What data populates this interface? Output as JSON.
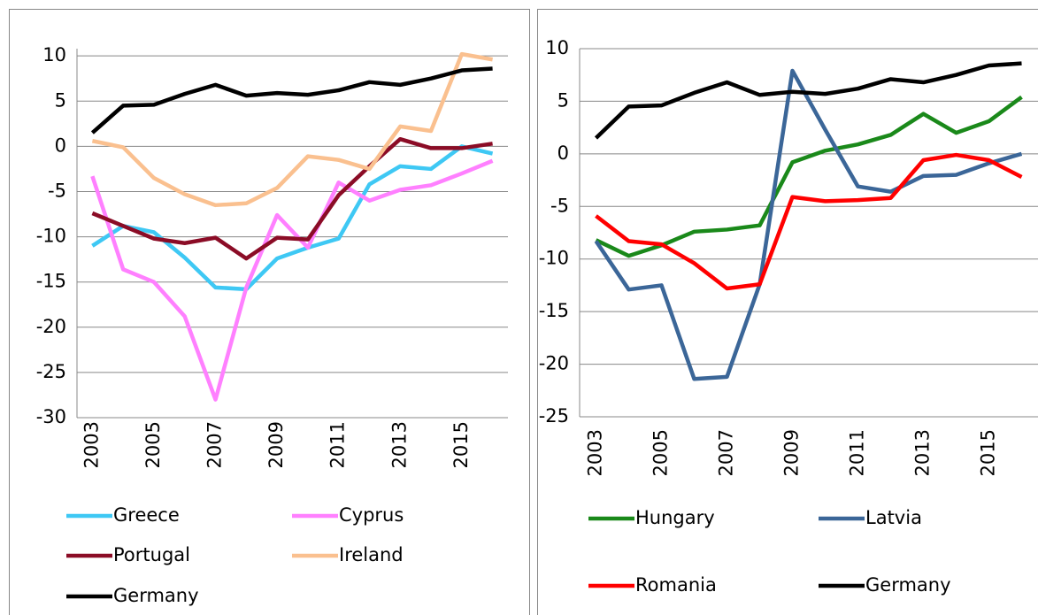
{
  "chart_data": [
    {
      "type": "line",
      "x": [
        2003,
        2004,
        2005,
        2006,
        2007,
        2008,
        2009,
        2010,
        2011,
        2012,
        2013,
        2014,
        2015,
        2016
      ],
      "xlim": [
        2002.5,
        2016.5
      ],
      "xticks": [
        2003,
        2005,
        2007,
        2009,
        2011,
        2013,
        2015
      ],
      "ylim": [
        -30,
        10.8
      ],
      "yticks": [
        -30,
        -25,
        -20,
        -15,
        -10,
        -5,
        0,
        5,
        10
      ],
      "grid": true,
      "series": [
        {
          "name": "Greece",
          "color": "#3ec8f4",
          "values": [
            -11,
            -8.8,
            -9.5,
            -12.3,
            -15.6,
            -15.8,
            -12.4,
            -11.2,
            -10.2,
            -4.2,
            -2.2,
            -2.5,
            0,
            -0.8
          ]
        },
        {
          "name": "Cyprus",
          "color": "#ff80ff",
          "values": [
            -3.3,
            -13.6,
            -15,
            -18.8,
            -28,
            -15.6,
            -7.6,
            -11.2,
            -4,
            -6,
            -4.8,
            -4.3,
            -3,
            -1.6
          ]
        },
        {
          "name": "Portugal",
          "color": "#8b0c26",
          "values": [
            -7.4,
            -8.8,
            -10.2,
            -10.7,
            -10.1,
            -12.4,
            -10.1,
            -10.3,
            -5.4,
            -2.2,
            0.8,
            -0.2,
            -0.2,
            0.3
          ]
        },
        {
          "name": "Ireland",
          "color": "#fac08f",
          "values": [
            0.6,
            -0.1,
            -3.5,
            -5.3,
            -6.5,
            -6.3,
            -4.6,
            -1.1,
            -1.5,
            -2.5,
            2.2,
            1.7,
            10.2,
            9.6
          ]
        },
        {
          "name": "Germany",
          "color": "#000000",
          "values": [
            1.5,
            4.5,
            4.6,
            5.8,
            6.8,
            5.6,
            5.9,
            5.7,
            6.2,
            7.1,
            6.8,
            7.5,
            8.4,
            8.6
          ]
        }
      ]
    },
    {
      "type": "line",
      "x": [
        2003,
        2004,
        2005,
        2006,
        2007,
        2008,
        2009,
        2010,
        2011,
        2012,
        2013,
        2014,
        2015,
        2016
      ],
      "xlim": [
        2002.5,
        2016.5
      ],
      "xticks": [
        2003,
        2005,
        2007,
        2009,
        2011,
        2013,
        2015
      ],
      "ylim": [
        -25,
        10
      ],
      "yticks": [
        -25,
        -20,
        -15,
        -10,
        -5,
        0,
        5,
        10
      ],
      "grid": true,
      "series": [
        {
          "name": "Hungary",
          "color": "#1a891a",
          "values": [
            -8.2,
            -9.7,
            -8.7,
            -7.4,
            -7.2,
            -6.8,
            -0.8,
            0.3,
            0.9,
            1.8,
            3.8,
            2,
            3.1,
            5.4
          ]
        },
        {
          "name": "Latvia",
          "color": "#3b6698",
          "values": [
            -8.3,
            -12.9,
            -12.5,
            -21.4,
            -21.2,
            -12.4,
            7.9,
            2.3,
            -3.1,
            -3.6,
            -2.1,
            -2,
            -0.9,
            0
          ]
        },
        {
          "name": "Romania",
          "color": "#ff0000",
          "values": [
            -5.9,
            -8.3,
            -8.6,
            -10.4,
            -12.8,
            -12.4,
            -4.1,
            -4.5,
            -4.4,
            -4.2,
            -0.6,
            -0.1,
            -0.6,
            -2.2
          ]
        },
        {
          "name": "Germany",
          "color": "#000000",
          "values": [
            1.5,
            4.5,
            4.6,
            5.8,
            6.8,
            5.6,
            5.9,
            5.7,
            6.2,
            7.1,
            6.8,
            7.5,
            8.4,
            8.6
          ]
        }
      ]
    }
  ]
}
